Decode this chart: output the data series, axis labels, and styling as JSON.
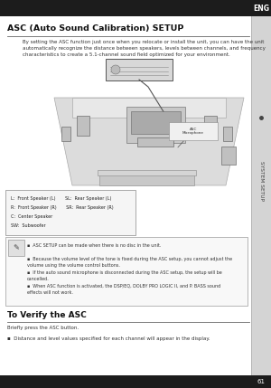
{
  "bg_color": "#ffffff",
  "title": "ASC (Auto Sound Calibration) SETUP",
  "body_text": "By setting the ASC function just once when you relocate or install the unit, you can have the unit\nautomatically recognize the distance between speakers, levels between channels, and frequency\ncharacteristics to create a 5.1-channel sound field optimized for your environment.",
  "note_lines": [
    "ASC SETUP can be made when there is no disc in the unit.",
    "Because the volume level of the tone is fixed during the ASC setup, you cannot adjust the\nvolume using the volume control buttons.",
    "If the auto sound microphone is disconnected during the ASC setup, the setup will be\ncancelled.",
    "When ASC function is activated, the DSP/EQ, DOLBY PRO LOGIC II, and P. BASS sound\neffects will not work."
  ],
  "verify_title": "To Verify the ASC",
  "verify_body_line1": "Briefly press the ASC button.",
  "verify_body_line2": "Distance and level values specified for each channel will appear in the display.",
  "speaker_labels": [
    "L:  Front Speaker (L)       SL:  Rear Speaker (L)",
    "R:  Front Speaker (R)       SR:  Rear Speaker (R)",
    "C:  Center Speaker",
    "SW:  Subwoofer"
  ],
  "page_num": "61",
  "eng_tab": "ENG",
  "system_setup_tab": "SYSTEM SETUP"
}
